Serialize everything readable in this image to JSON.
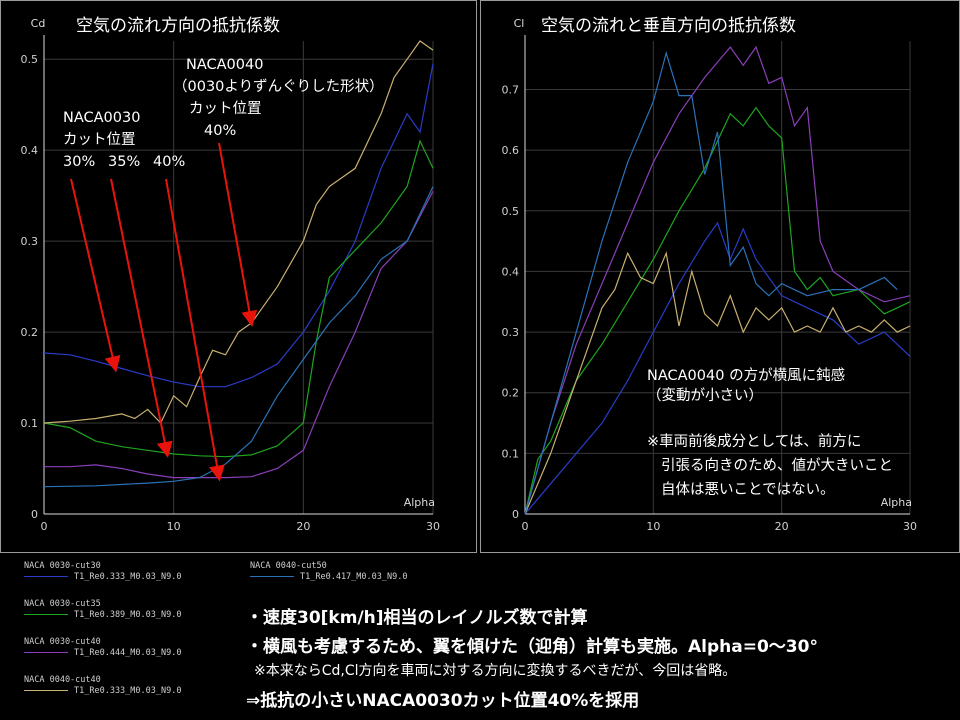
{
  "chart_data": [
    {
      "type": "line",
      "title": "空気の流れ方向の抵抗係数",
      "ylabel": "Cd",
      "xlabel": "Alpha",
      "xlim": [
        0,
        30
      ],
      "ylim": [
        0,
        0.52
      ],
      "xticks": [
        "0",
        "10",
        "20",
        "30"
      ],
      "yticks": [
        "0",
        "0.1",
        "0.2",
        "0.3",
        "0.4",
        "0.5"
      ],
      "series": [
        {
          "name": "NACA 0030-cut30",
          "color": "#2a3cc8",
          "x": [
            0,
            2,
            4,
            6,
            8,
            10,
            12,
            14,
            16,
            18,
            20,
            22,
            24,
            26,
            28,
            29,
            30
          ],
          "y": [
            0.177,
            0.175,
            0.168,
            0.16,
            0.152,
            0.145,
            0.14,
            0.14,
            0.15,
            0.165,
            0.2,
            0.245,
            0.3,
            0.38,
            0.44,
            0.42,
            0.495
          ]
        },
        {
          "name": "NACA 0030-cut35",
          "color": "#1fa51f",
          "x": [
            0,
            2,
            4,
            6,
            8,
            10,
            12,
            14,
            16,
            18,
            20,
            21,
            22,
            24,
            26,
            28,
            29,
            30
          ],
          "y": [
            0.1,
            0.095,
            0.08,
            0.074,
            0.07,
            0.066,
            0.064,
            0.063,
            0.065,
            0.075,
            0.1,
            0.19,
            0.26,
            0.29,
            0.32,
            0.36,
            0.41,
            0.38
          ]
        },
        {
          "name": "NACA 0030-cut40",
          "color": "#8a3fb8",
          "x": [
            0,
            2,
            4,
            6,
            8,
            10,
            12,
            14,
            16,
            18,
            20,
            22,
            24,
            26,
            28,
            30
          ],
          "y": [
            0.052,
            0.052,
            0.054,
            0.05,
            0.044,
            0.04,
            0.04,
            0.04,
            0.041,
            0.05,
            0.07,
            0.14,
            0.2,
            0.27,
            0.3,
            0.355
          ]
        },
        {
          "name": "NACA 0040-cut40",
          "color": "#c8b070",
          "x": [
            0,
            2,
            4,
            6,
            7,
            8,
            9,
            10,
            11,
            12,
            13,
            14,
            15,
            16,
            18,
            20,
            21,
            22,
            24,
            26,
            27,
            28,
            29,
            30
          ],
          "y": [
            0.1,
            0.102,
            0.105,
            0.11,
            0.105,
            0.115,
            0.1,
            0.13,
            0.118,
            0.15,
            0.18,
            0.175,
            0.2,
            0.21,
            0.25,
            0.3,
            0.34,
            0.36,
            0.38,
            0.44,
            0.48,
            0.5,
            0.52,
            0.51
          ]
        },
        {
          "name": "NACA 0040-cut50",
          "color": "#2a72b8",
          "x": [
            0,
            4,
            8,
            10,
            12,
            14,
            16,
            18,
            20,
            22,
            24,
            26,
            28,
            30
          ],
          "y": [
            0.03,
            0.031,
            0.034,
            0.036,
            0.04,
            0.055,
            0.08,
            0.13,
            0.17,
            0.21,
            0.24,
            0.28,
            0.3,
            0.36
          ]
        }
      ]
    },
    {
      "type": "line",
      "title": "空気の流れと垂直方向の抵抗係数",
      "ylabel": "Cl",
      "xlabel": "Alpha",
      "xlim": [
        0,
        30
      ],
      "ylim": [
        0,
        0.78
      ],
      "xticks": [
        "0",
        "10",
        "20",
        "30"
      ],
      "yticks": [
        "0",
        "0.1",
        "0.2",
        "0.3",
        "0.4",
        "0.5",
        "0.6",
        "0.7"
      ],
      "series": [
        {
          "name": "NACA 0030-cut30",
          "color": "#2a3cc8",
          "x": [
            0,
            2,
            4,
            6,
            8,
            10,
            12,
            14,
            15,
            16,
            17,
            18,
            20,
            22,
            24,
            26,
            28,
            30
          ],
          "y": [
            0,
            0.05,
            0.1,
            0.15,
            0.22,
            0.3,
            0.38,
            0.45,
            0.48,
            0.42,
            0.47,
            0.42,
            0.36,
            0.34,
            0.32,
            0.28,
            0.3,
            0.26
          ]
        },
        {
          "name": "NACA 0030-cut35",
          "color": "#1fa51f",
          "x": [
            0,
            1,
            2,
            4,
            6,
            8,
            10,
            12,
            14,
            16,
            17,
            18,
            19,
            20,
            21,
            22,
            23,
            24,
            26,
            28,
            30
          ],
          "y": [
            0,
            0.09,
            0.12,
            0.22,
            0.28,
            0.35,
            0.42,
            0.5,
            0.57,
            0.66,
            0.64,
            0.67,
            0.64,
            0.62,
            0.4,
            0.37,
            0.39,
            0.36,
            0.37,
            0.33,
            0.35
          ]
        },
        {
          "name": "NACA 0030-cut40",
          "color": "#8a3fb8",
          "x": [
            0,
            2,
            4,
            6,
            8,
            10,
            12,
            14,
            16,
            17,
            18,
            19,
            20,
            21,
            22,
            23,
            24,
            26,
            28,
            30
          ],
          "y": [
            0,
            0.15,
            0.28,
            0.38,
            0.48,
            0.58,
            0.66,
            0.72,
            0.77,
            0.74,
            0.77,
            0.71,
            0.72,
            0.64,
            0.67,
            0.45,
            0.4,
            0.37,
            0.35,
            0.36
          ]
        },
        {
          "name": "NACA 0040-cut40",
          "color": "#c8b070",
          "x": [
            0,
            2,
            4,
            6,
            7,
            8,
            9,
            10,
            11,
            12,
            13,
            14,
            15,
            16,
            17,
            18,
            19,
            20,
            21,
            22,
            23,
            24,
            25,
            26,
            27,
            28,
            29,
            30
          ],
          "y": [
            0,
            0.1,
            0.22,
            0.34,
            0.37,
            0.43,
            0.39,
            0.38,
            0.43,
            0.31,
            0.4,
            0.33,
            0.31,
            0.36,
            0.3,
            0.34,
            0.32,
            0.34,
            0.3,
            0.31,
            0.3,
            0.34,
            0.3,
            0.31,
            0.3,
            0.32,
            0.3,
            0.31
          ]
        },
        {
          "name": "NACA 0040-cut50",
          "color": "#2a72b8",
          "x": [
            0,
            2,
            4,
            6,
            8,
            10,
            11,
            12,
            13,
            14,
            15,
            16,
            17,
            18,
            19,
            20,
            22,
            24,
            26,
            28,
            29
          ],
          "y": [
            0,
            0.15,
            0.3,
            0.45,
            0.58,
            0.68,
            0.76,
            0.69,
            0.69,
            0.56,
            0.63,
            0.41,
            0.44,
            0.38,
            0.36,
            0.38,
            0.36,
            0.37,
            0.37,
            0.39,
            0.37
          ]
        }
      ]
    }
  ],
  "left_panel": {
    "naca0030_label": "NACA0030",
    "cut_label": "カット位置",
    "pct30": "30%",
    "pct35": "35%",
    "pct40": "40%",
    "naca0040_label": "NACA0040",
    "naca0040_note": "（0030よりずんぐりした形状）",
    "naca0040_cut": "カット位置",
    "naca0040_pct": "40%"
  },
  "right_panel": {
    "note1": "NACA0040 の方が横風に鈍感",
    "note2": "（変動が小さい）",
    "note3": "※車両前後成分としては、前方に",
    "note4": "引張る向きのため、値が大きいこと",
    "note5": "自体は悪いことではない。"
  },
  "legend": [
    {
      "name": "NACA 0030-cut30",
      "sub": "T1_Re0.333_M0.03_N9.0",
      "color": "#2a3cc8"
    },
    {
      "name": "NACA 0030-cut35",
      "sub": "T1_Re0.389_M0.03_N9.0",
      "color": "#1fa51f"
    },
    {
      "name": "NACA 0030-cut40",
      "sub": "T1_Re0.444_M0.03_N9.0",
      "color": "#8a3fb8"
    },
    {
      "name": "NACA 0040-cut40",
      "sub": "T1_Re0.333_M0.03_N9.0",
      "color": "#c8b070"
    },
    {
      "name": "NACA 0040-cut50",
      "sub": "T1_Re0.417_M0.03_N9.0",
      "color": "#2a72b8"
    }
  ],
  "bullets": {
    "b1": "・速度30[km/h]相当のレイノルズ数で計算",
    "b2": "・横風も考慮するため、翼を傾けた（迎角）計算も実施。Alpha=0～30°",
    "b3": "※本来ならCd,Cl方向を車両に対する方向に変換するべきだが、今回は省略。",
    "b4": "⇒抵抗の小さいNACA0030カット位置40%を採用"
  }
}
